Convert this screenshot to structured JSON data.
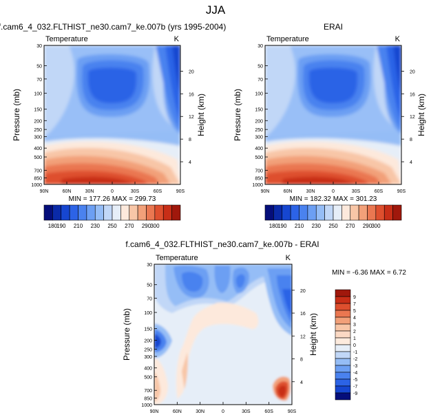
{
  "figure": {
    "title": "JJA"
  },
  "chart_data": [
    {
      "type": "heatmap",
      "panel": "model",
      "title": "f.cam6_4_032.FLTHIST_ne30.cam7_ke.007b (yrs 1995-2004)",
      "variable": "Temperature",
      "units": "K",
      "ylabel": "Pressure (mb)",
      "ylabel_right": "Height (km)",
      "x_ticks": [
        "90N",
        "60N",
        "30N",
        "0",
        "30S",
        "60S",
        "90S"
      ],
      "y_ticks": [
        "30",
        "50",
        "70",
        "100",
        "150",
        "200",
        "250",
        "300",
        "400",
        "500",
        "700",
        "850",
        "1000"
      ],
      "height_ticks": [
        "4",
        "8",
        "12",
        "16",
        "20"
      ],
      "min_max": "MIN = 177.26   MAX = 299.73",
      "levels": [
        180,
        190,
        200,
        210,
        220,
        230,
        240,
        250,
        260,
        270,
        280,
        290,
        300
      ],
      "level_labels": [
        "180",
        "190",
        "210",
        "230",
        "250",
        "270",
        "290",
        "300"
      ],
      "colors": [
        "#050e7a",
        "#0a2aa8",
        "#1646d0",
        "#2c63e6",
        "#4a82ef",
        "#6c9ff3",
        "#95bdf6",
        "#c1d7f7",
        "#e6eef8",
        "#fde9dc",
        "#f8c6a7",
        "#f2a079",
        "#ea7751",
        "#de4f2e",
        "#c82e17",
        "#a0180c"
      ]
    },
    {
      "type": "heatmap",
      "panel": "obs",
      "title": "ERAI",
      "variable": "Temperature",
      "units": "K",
      "ylabel": "Pressure (mb)",
      "ylabel_right": "Height (km)",
      "x_ticks": [
        "90N",
        "60N",
        "30N",
        "0",
        "30S",
        "60S",
        "90S"
      ],
      "y_ticks": [
        "30",
        "50",
        "70",
        "100",
        "150",
        "200",
        "250",
        "300",
        "400",
        "500",
        "700",
        "850",
        "1000"
      ],
      "height_ticks": [
        "4",
        "8",
        "12",
        "16",
        "20"
      ],
      "min_max": "MIN = 182.32   MAX = 301.23",
      "levels": [
        180,
        190,
        200,
        210,
        220,
        230,
        240,
        250,
        260,
        270,
        280,
        290,
        300
      ],
      "level_labels": [
        "180",
        "190",
        "210",
        "230",
        "250",
        "270",
        "290",
        "300"
      ],
      "colors": [
        "#050e7a",
        "#0a2aa8",
        "#1646d0",
        "#2c63e6",
        "#4a82ef",
        "#6c9ff3",
        "#95bdf6",
        "#c1d7f7",
        "#e6eef8",
        "#fde9dc",
        "#f8c6a7",
        "#f2a079",
        "#ea7751",
        "#de4f2e",
        "#c82e17",
        "#a0180c"
      ]
    },
    {
      "type": "heatmap",
      "panel": "diff",
      "title": "f.cam6_4_032.FLTHIST_ne30.cam7_ke.007b - ERAI",
      "variable": "Temperature",
      "units": "K",
      "ylabel": "Pressure (mb)",
      "ylabel_right": "Height (km)",
      "x_ticks": [
        "90N",
        "60N",
        "30N",
        "0",
        "30S",
        "60S",
        "90S"
      ],
      "y_ticks": [
        "30",
        "50",
        "70",
        "100",
        "150",
        "200",
        "250",
        "300",
        "400",
        "500",
        "700",
        "850",
        "1000"
      ],
      "height_ticks": [
        "4",
        "8",
        "12",
        "16",
        "20"
      ],
      "min_max": "MIN = -6.36   MAX =  6.72",
      "level_labels": [
        "9",
        "7",
        "5",
        "4",
        "3",
        "2",
        "1",
        "0",
        "-1",
        "-2",
        "-3",
        "-4",
        "-5",
        "-7",
        "-9"
      ],
      "colors": [
        "#a0180c",
        "#c82e17",
        "#de4f2e",
        "#ea7751",
        "#f2a079",
        "#f8c6a7",
        "#fbd9c4",
        "#fdebde",
        "#e6eef8",
        "#c1d7f7",
        "#95bdf6",
        "#6c9ff3",
        "#4a82ef",
        "#2c63e6",
        "#1646d0",
        "#050e7a"
      ]
    }
  ]
}
